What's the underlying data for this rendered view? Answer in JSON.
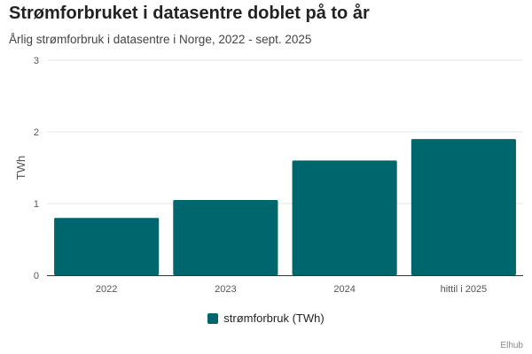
{
  "colors": {
    "bar": "#00666e",
    "grid": "#e6e6e6",
    "axis": "#333333",
    "text": "#555555"
  },
  "chart_data": {
    "type": "bar",
    "title": "Strømforbruket i datasentre doblet på to år",
    "subtitle": "Årlig strømforbruk i datasentre i Norge, 2022 - sept. 2025",
    "xlabel": "",
    "ylabel": "TWh",
    "categories": [
      "2022",
      "2023",
      "2024",
      "hittil i 2025"
    ],
    "series": [
      {
        "name": "strømforbruk (TWh)",
        "values": [
          0.8,
          1.05,
          1.6,
          1.9
        ]
      }
    ],
    "ylim": [
      0,
      3
    ],
    "yticks": [
      "0",
      "1",
      "2",
      "3"
    ],
    "grid": true,
    "legend": "bottom-center",
    "credit": "Elhub"
  }
}
